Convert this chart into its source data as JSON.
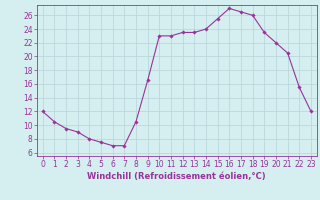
{
  "x": [
    0,
    1,
    2,
    3,
    4,
    5,
    6,
    7,
    8,
    9,
    10,
    11,
    12,
    13,
    14,
    15,
    16,
    17,
    18,
    19,
    20,
    21,
    22,
    23
  ],
  "y": [
    12,
    10.5,
    9.5,
    9,
    8,
    7.5,
    7,
    7,
    10.5,
    16.5,
    23,
    23,
    23.5,
    23.5,
    24,
    25.5,
    27,
    26.5,
    26,
    23.5,
    22,
    20.5,
    15.5,
    12
  ],
  "line_color": "#993399",
  "marker": "D",
  "marker_size": 1.8,
  "bg_color": "#d5eef0",
  "grid_color": "#b8d4d8",
  "xlabel": "Windchill (Refroidissement éolien,°C)",
  "xlabel_fontsize": 6.0,
  "tick_fontsize": 5.5,
  "xlim": [
    -0.5,
    23.5
  ],
  "ylim": [
    5.5,
    27.5
  ],
  "yticks": [
    6,
    8,
    10,
    12,
    14,
    16,
    18,
    20,
    22,
    24,
    26
  ],
  "xticks": [
    0,
    1,
    2,
    3,
    4,
    5,
    6,
    7,
    8,
    9,
    10,
    11,
    12,
    13,
    14,
    15,
    16,
    17,
    18,
    19,
    20,
    21,
    22,
    23
  ]
}
